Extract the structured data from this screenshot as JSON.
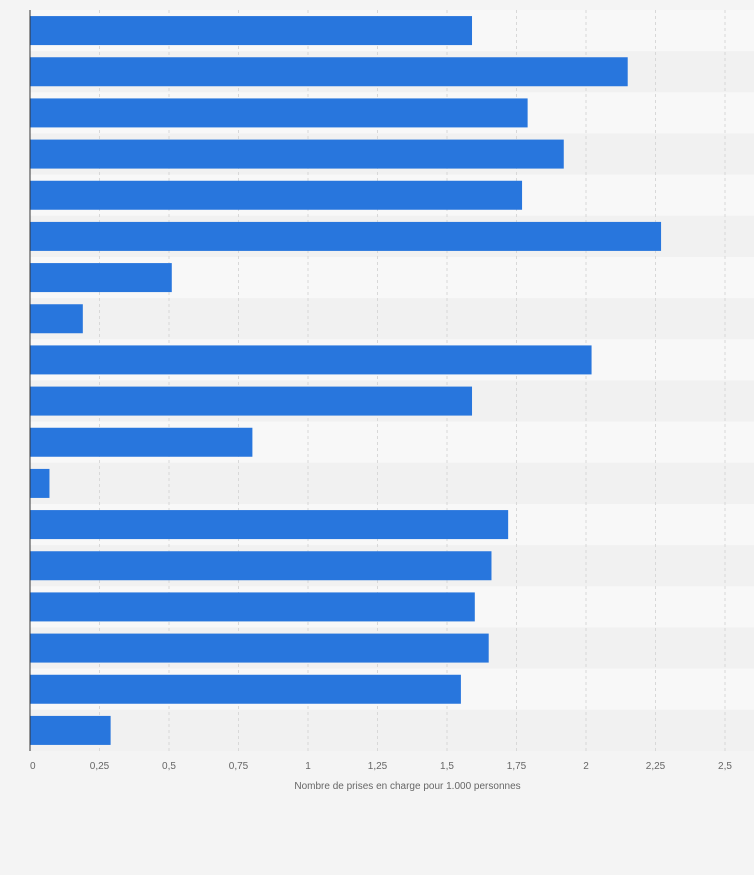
{
  "chart_data": {
    "type": "bar",
    "orientation": "horizontal",
    "categories": [
      "",
      "",
      "",
      "",
      "",
      "",
      "",
      "",
      "",
      "",
      "",
      "",
      "",
      "",
      "",
      "",
      "",
      ""
    ],
    "values": [
      1.59,
      2.15,
      1.79,
      1.92,
      1.77,
      2.27,
      0.51,
      0.19,
      2.02,
      1.59,
      0.8,
      0.07,
      1.72,
      1.66,
      1.6,
      1.65,
      1.55,
      0.29
    ],
    "xlabel": "Nombre de prises en charge pour 1.000 personnes",
    "ylabel": "",
    "xlim": [
      0,
      2.5
    ],
    "ticks": [
      {
        "value": 0,
        "label": "0"
      },
      {
        "value": 0.25,
        "label": "0,25"
      },
      {
        "value": 0.5,
        "label": "0,5"
      },
      {
        "value": 0.75,
        "label": "0,75"
      },
      {
        "value": 1,
        "label": "1"
      },
      {
        "value": 1.25,
        "label": "1,25"
      },
      {
        "value": 1.5,
        "label": "1,5"
      },
      {
        "value": 1.75,
        "label": "1,75"
      },
      {
        "value": 2,
        "label": "2"
      },
      {
        "value": 2.25,
        "label": "2,25"
      },
      {
        "value": 2.5,
        "label": "2,5"
      }
    ],
    "grid": true,
    "colors": {
      "bar": "#2876dd",
      "band_light": "#f8f8f8",
      "band_dark": "#f1f1f1",
      "grid": "#d8d8d8",
      "axis": "#333333",
      "text": "#666666",
      "page": "#f4f4f4"
    }
  }
}
